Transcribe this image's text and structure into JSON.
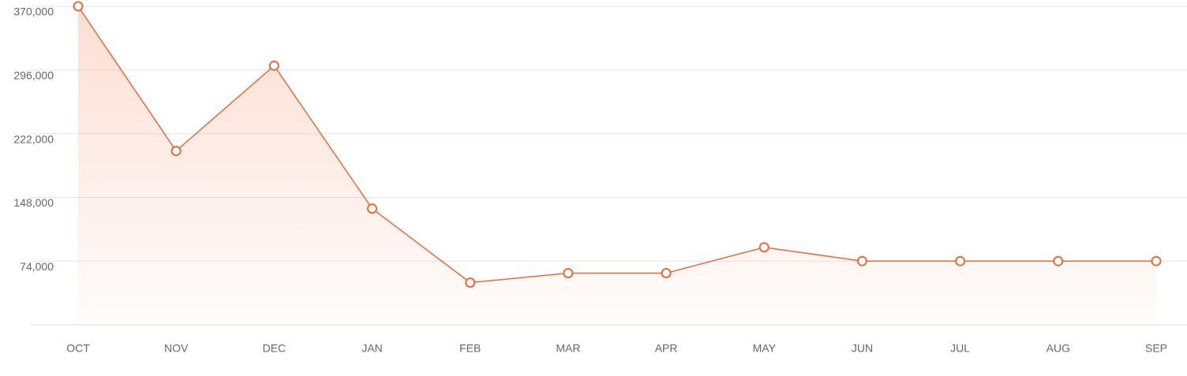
{
  "chart_data": {
    "type": "line",
    "categories": [
      "OCT",
      "NOV",
      "DEC",
      "JAN",
      "FEB",
      "MAR",
      "APR",
      "MAY",
      "JUN",
      "JUL",
      "AUG",
      "SEP"
    ],
    "values": [
      370000,
      202000,
      301000,
      135000,
      49000,
      60000,
      60000,
      90000,
      74000,
      74000,
      74000,
      74000
    ],
    "color": "#e8693a",
    "ylim": [
      0,
      370000
    ],
    "yticks": [
      {
        "value": 74000,
        "label": "74,000"
      },
      {
        "value": 148000,
        "label": "148,000"
      },
      {
        "value": 222000,
        "label": "222,000"
      },
      {
        "value": 296000,
        "label": "296,000"
      },
      {
        "value": 370000,
        "label": "370,000"
      }
    ],
    "grid": true
  }
}
